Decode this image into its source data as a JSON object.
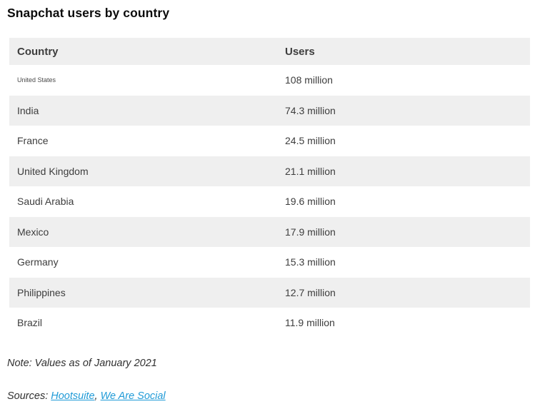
{
  "page": {
    "title": "Snapchat users by country",
    "note": "Note: Values as of January 2021",
    "sources_label": "Sources:",
    "sources_separator": ",",
    "sources": [
      {
        "label": "Hootsuite"
      },
      {
        "label": "We Are Social"
      }
    ]
  },
  "table": {
    "headers": [
      "Country",
      "Users"
    ],
    "rows": [
      {
        "country": "United States",
        "users": "108 million"
      },
      {
        "country": "India",
        "users": "74.3 million"
      },
      {
        "country": "France",
        "users": "24.5 million"
      },
      {
        "country": "United Kingdom",
        "users": "21.1 million"
      },
      {
        "country": "Saudi Arabia",
        "users": "19.6 million"
      },
      {
        "country": "Mexico",
        "users": "17.9 million"
      },
      {
        "country": "Germany",
        "users": "15.3 million"
      },
      {
        "country": "Philippines",
        "users": "12.7 million"
      },
      {
        "country": "Brazil",
        "users": "11.9 million"
      }
    ]
  },
  "colors": {
    "row_alt_background": "#efefef",
    "link_blue": "#1f9ad7",
    "text": "#3d3d3d",
    "title_text": "#0c0c0c"
  },
  "chart_data": {
    "type": "table",
    "title": "Snapchat users by country",
    "columns": [
      "Country",
      "Users"
    ],
    "rows": [
      [
        "United States",
        "108 million"
      ],
      [
        "India",
        "74.3 million"
      ],
      [
        "France",
        "24.5 million"
      ],
      [
        "United Kingdom",
        "21.1 million"
      ],
      [
        "Saudi Arabia",
        "19.6 million"
      ],
      [
        "Mexico",
        "17.9 million"
      ],
      [
        "Germany",
        "15.3 million"
      ],
      [
        "Philippines",
        "12.7 million"
      ],
      [
        "Brazil",
        "11.9 million"
      ]
    ],
    "values_millions": [
      108,
      74.3,
      24.5,
      21.1,
      19.6,
      17.9,
      15.3,
      12.7,
      11.9
    ],
    "note": "Values as of January 2021",
    "sources": [
      "Hootsuite",
      "We Are Social"
    ]
  }
}
